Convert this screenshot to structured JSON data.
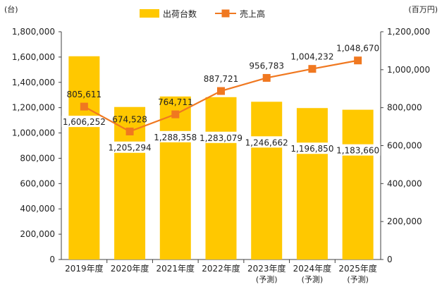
{
  "chart_data": {
    "type": "bar+line",
    "left_unit": "(台)",
    "right_unit": "(百万円)",
    "categories": [
      {
        "label": "2019年度",
        "sub": ""
      },
      {
        "label": "2020年度",
        "sub": ""
      },
      {
        "label": "2021年度",
        "sub": ""
      },
      {
        "label": "2022年度",
        "sub": ""
      },
      {
        "label": "2023年度",
        "sub": "(予測)"
      },
      {
        "label": "2024年度",
        "sub": "(予測)"
      },
      {
        "label": "2025年度",
        "sub": "(予測)"
      }
    ],
    "series": [
      {
        "name": "出荷台数",
        "kind": "bar",
        "axis": "left",
        "color": "#FFC800",
        "values": [
          1606252,
          1205294,
          1288358,
          1283079,
          1246662,
          1196850,
          1183660
        ],
        "value_labels": [
          "1,606,252",
          "1,205,294",
          "1,288,358",
          "1,283,079",
          "1,246,662",
          "1,196,850",
          "1,183,660"
        ]
      },
      {
        "name": "売上高",
        "kind": "line",
        "axis": "right",
        "color": "#F07820",
        "values": [
          805611,
          674528,
          764711,
          887721,
          956783,
          1004232,
          1048670
        ],
        "value_labels": [
          "805,611",
          "674,528",
          "764,711",
          "887,721",
          "956,783",
          "1,004,232",
          "1,048,670"
        ]
      }
    ],
    "left_axis": {
      "min": 0,
      "max": 1800000,
      "ticks": [
        0,
        200000,
        400000,
        600000,
        800000,
        1000000,
        1200000,
        1400000,
        1600000,
        1800000
      ],
      "tick_labels": [
        "0",
        "200,000",
        "400,000",
        "600,000",
        "800,000",
        "1,000,000",
        "1,200,000",
        "1,400,000",
        "1,600,000",
        "1,800,000"
      ]
    },
    "right_axis": {
      "min": 0,
      "max": 1200000,
      "ticks": [
        0,
        200000,
        400000,
        600000,
        800000,
        1000000,
        1200000
      ],
      "tick_labels": [
        "0",
        "200,000",
        "400,000",
        "600,000",
        "800,000",
        "1,000,000",
        "1,200,000"
      ]
    },
    "legend_position": "top-center",
    "grid": false
  }
}
